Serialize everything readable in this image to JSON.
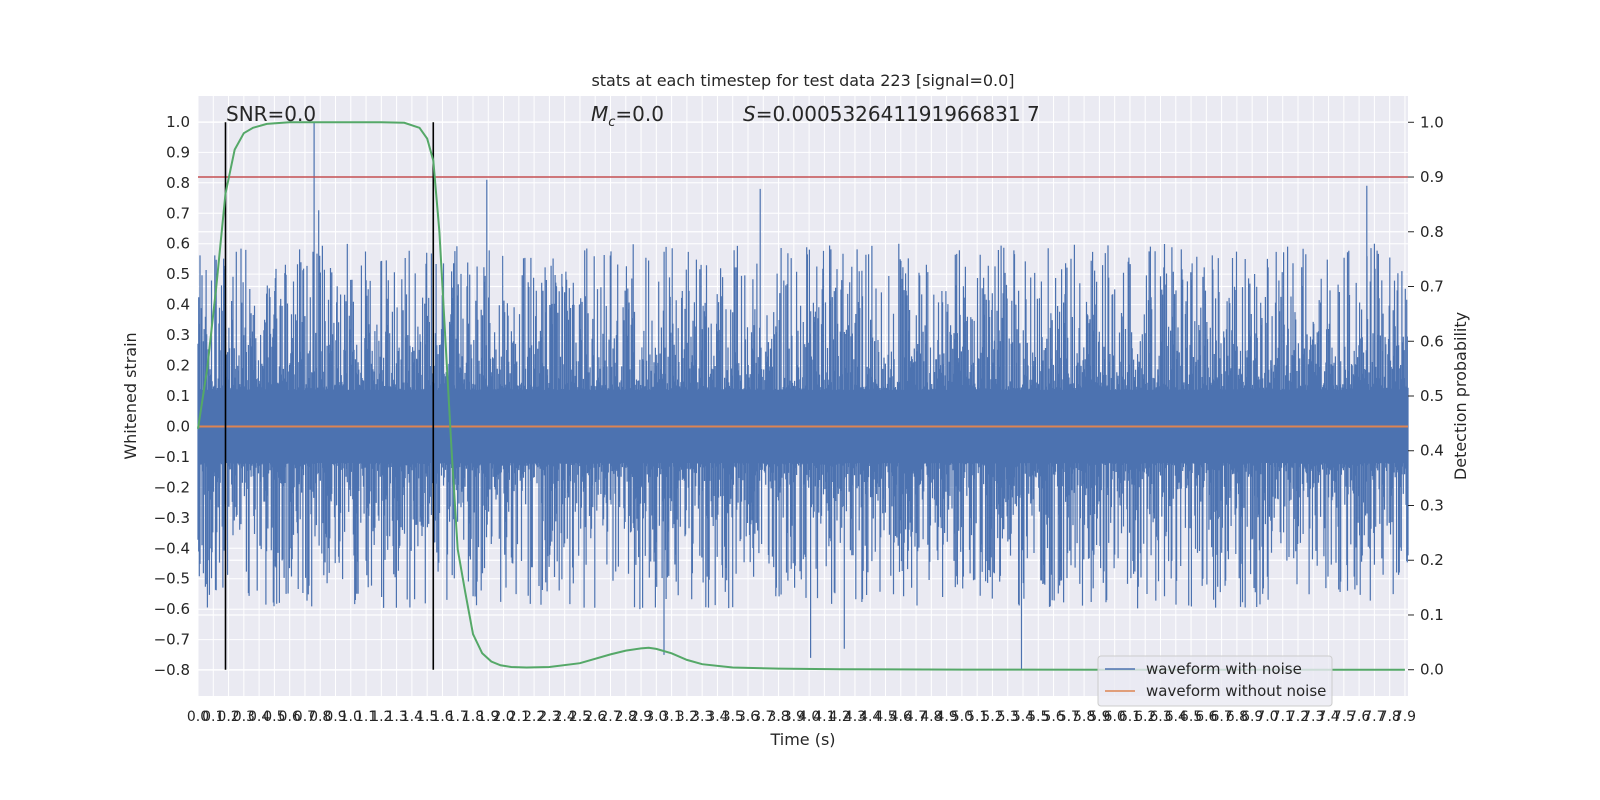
{
  "chart_data": {
    "type": "line",
    "title": "stats at each timestep for test data 223 [signal=0.0]",
    "xlabel": "Time (s)",
    "ylabel": "Whitened strain",
    "y2label": "Detection probability",
    "xlim": [
      0.0,
      7.92
    ],
    "ylim": [
      -0.885,
      1.085
    ],
    "y2lim": [
      -0.048,
      1.048
    ],
    "grid": true,
    "legend_position": "lower right",
    "x_tick_step": 0.1,
    "x_ticks_from": 0.0,
    "x_ticks_to": 7.9,
    "y_ticks": [
      -0.8,
      -0.7,
      -0.6,
      -0.5,
      -0.4,
      -0.3,
      -0.2,
      -0.1,
      0.0,
      0.1,
      0.2,
      0.3,
      0.4,
      0.5,
      0.6,
      0.7,
      0.8,
      0.9,
      1.0
    ],
    "y2_ticks": [
      0.0,
      0.1,
      0.2,
      0.3,
      0.4,
      0.5,
      0.6,
      0.7,
      0.8,
      0.9,
      1.0
    ],
    "annotations": {
      "snr": "SNR=0.0",
      "mc_symbol": "M",
      "mc_subscript": "c",
      "mc_value": "=0.0",
      "s_symbol": "S",
      "s_value": "=0.000532641191966831 7"
    },
    "vertical_lines_x": [
      0.18,
      1.54
    ],
    "threshold": {
      "y2": 0.9,
      "color": "#c44e52"
    },
    "series": [
      {
        "name": "waveform with noise",
        "color": "#4c72b0",
        "kind": "noise-envelope",
        "notable_peaks": [
          {
            "x": 0.76,
            "y": 1.0
          },
          {
            "x": 0.79,
            "y": 0.71
          },
          {
            "x": 1.89,
            "y": 0.81
          },
          {
            "x": 7.65,
            "y": 0.79
          },
          {
            "x": 3.68,
            "y": 0.78
          },
          {
            "x": 5.39,
            "y": -0.8
          },
          {
            "x": 4.01,
            "y": -0.76
          },
          {
            "x": 4.23,
            "y": -0.73
          },
          {
            "x": 3.05,
            "y": -0.75
          }
        ]
      },
      {
        "name": "waveform without noise",
        "color": "#dd8452",
        "x": [
          0.0,
          7.92
        ],
        "y": [
          0.0,
          0.0
        ]
      },
      {
        "name": "Detection probability",
        "axis": "right",
        "color": "#55a868",
        "x": [
          0.0,
          0.06,
          0.12,
          0.18,
          0.24,
          0.3,
          0.36,
          0.45,
          0.6,
          0.9,
          1.2,
          1.35,
          1.45,
          1.5,
          1.54,
          1.58,
          1.62,
          1.66,
          1.7,
          1.75,
          1.8,
          1.86,
          1.92,
          1.98,
          2.05,
          2.15,
          2.3,
          2.5,
          2.7,
          2.8,
          2.9,
          2.95,
          3.0,
          3.1,
          3.2,
          3.3,
          3.5,
          3.8,
          4.2,
          5.0,
          6.0,
          7.9
        ],
        "y": [
          0.44,
          0.55,
          0.7,
          0.87,
          0.95,
          0.98,
          0.99,
          0.997,
          1.0,
          1.0,
          1.0,
          0.999,
          0.99,
          0.97,
          0.93,
          0.8,
          0.6,
          0.4,
          0.22,
          0.14,
          0.065,
          0.03,
          0.015,
          0.008,
          0.005,
          0.004,
          0.005,
          0.012,
          0.028,
          0.035,
          0.039,
          0.04,
          0.038,
          0.03,
          0.018,
          0.01,
          0.004,
          0.002,
          0.0008,
          0.0003,
          0.0001,
          0.0
        ]
      }
    ]
  }
}
